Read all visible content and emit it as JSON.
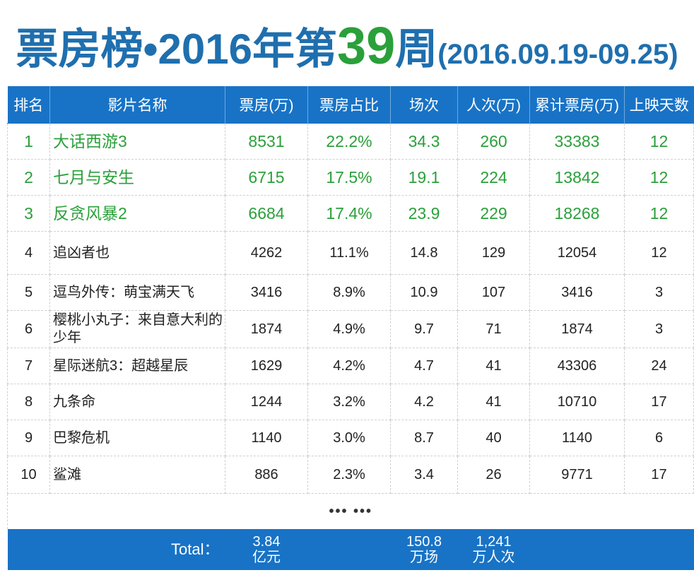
{
  "title": {
    "prefix": "票房榜•2016年第",
    "week": "39",
    "suffix": "周",
    "range": "(2016.09.19-09.25)"
  },
  "columns": [
    "排名",
    "影片名称",
    "票房(万)",
    "票房占比",
    "场次",
    "人次(万)",
    "累计票房(万)",
    "上映天数"
  ],
  "rows": [
    {
      "rank": "1",
      "name": "大话西游3",
      "box": "8531",
      "share": "22.2%",
      "sessions": "34.3",
      "admissions": "260",
      "cumulative": "33383",
      "days": "12"
    },
    {
      "rank": "2",
      "name": "七月与安生",
      "box": "6715",
      "share": "17.5%",
      "sessions": "19.1",
      "admissions": "224",
      "cumulative": "13842",
      "days": "12"
    },
    {
      "rank": "3",
      "name": "反贪风暴2",
      "box": "6684",
      "share": "17.4%",
      "sessions": "23.9",
      "admissions": "229",
      "cumulative": "18268",
      "days": "12"
    },
    {
      "rank": "4",
      "name": "追凶者也",
      "box": "4262",
      "share": "11.1%",
      "sessions": "14.8",
      "admissions": "129",
      "cumulative": "12054",
      "days": "12"
    },
    {
      "rank": "5",
      "name": "逗鸟外传：萌宝满天飞",
      "box": "3416",
      "share": "8.9%",
      "sessions": "10.9",
      "admissions": "107",
      "cumulative": "3416",
      "days": "3"
    },
    {
      "rank": "6",
      "name": "樱桃小丸子：来自意大利的少年",
      "box": "1874",
      "share": "4.9%",
      "sessions": "9.7",
      "admissions": "71",
      "cumulative": "1874",
      "days": "3"
    },
    {
      "rank": "7",
      "name": "星际迷航3：超越星辰",
      "box": "1629",
      "share": "4.2%",
      "sessions": "4.7",
      "admissions": "41",
      "cumulative": "43306",
      "days": "24"
    },
    {
      "rank": "8",
      "name": "九条命",
      "box": "1244",
      "share": "3.2%",
      "sessions": "4.2",
      "admissions": "41",
      "cumulative": "10710",
      "days": "17"
    },
    {
      "rank": "9",
      "name": "巴黎危机",
      "box": "1140",
      "share": "3.0%",
      "sessions": "8.7",
      "admissions": "40",
      "cumulative": "1140",
      "days": "6"
    },
    {
      "rank": "10",
      "name": "鲨滩",
      "box": "886",
      "share": "2.3%",
      "sessions": "3.4",
      "admissions": "26",
      "cumulative": "9771",
      "days": "17"
    }
  ],
  "ellipsis": "••• •••",
  "total": {
    "label": "Total：",
    "box_value": "3.84",
    "box_unit": "亿元",
    "sessions_value": "150.8",
    "sessions_unit": "万场",
    "admissions_value": "1,241",
    "admissions_unit": "万人次"
  },
  "colors": {
    "header_blue": "#1873c6",
    "title_blue": "#1f6fae",
    "top3_green": "#2aa03a"
  }
}
